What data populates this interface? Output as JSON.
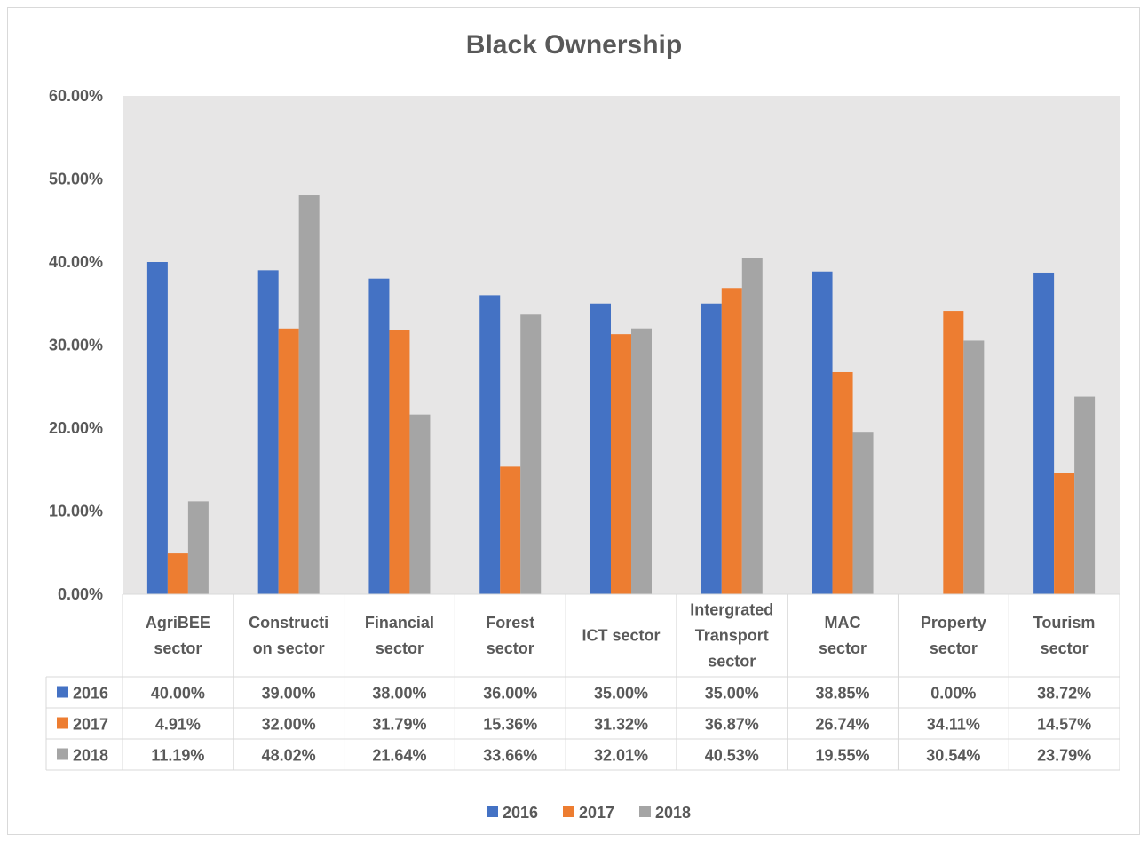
{
  "chart_data": {
    "type": "bar",
    "title": "Black Ownership",
    "categories": [
      [
        "AgriBEE",
        "sector"
      ],
      [
        "Constructi",
        "on sector"
      ],
      [
        "Financial",
        "sector"
      ],
      [
        "Forest",
        "sector"
      ],
      [
        "ICT sector"
      ],
      [
        "Intergrated",
        "Transport",
        "sector"
      ],
      [
        "MAC",
        "sector"
      ],
      [
        "Property",
        "sector"
      ],
      [
        "Tourism",
        "sector"
      ]
    ],
    "series": [
      {
        "name": "2016",
        "color": "#4472c4",
        "values": [
          40.0,
          39.0,
          38.0,
          36.0,
          35.0,
          35.0,
          38.85,
          0.0,
          38.72
        ],
        "labels": [
          "40.00%",
          "39.00%",
          "38.00%",
          "36.00%",
          "35.00%",
          "35.00%",
          "38.85%",
          "0.00%",
          "38.72%"
        ]
      },
      {
        "name": "2017",
        "color": "#ed7d31",
        "values": [
          4.91,
          32.0,
          31.79,
          15.36,
          31.32,
          36.87,
          26.74,
          34.11,
          14.57
        ],
        "labels": [
          "4.91%",
          "32.00%",
          "31.79%",
          "15.36%",
          "31.32%",
          "36.87%",
          "26.74%",
          "34.11%",
          "14.57%"
        ]
      },
      {
        "name": "2018",
        "color": "#a5a5a5",
        "values": [
          11.19,
          48.02,
          21.64,
          33.66,
          32.01,
          40.53,
          19.55,
          30.54,
          23.79
        ],
        "labels": [
          "11.19%",
          "48.02%",
          "21.64%",
          "33.66%",
          "32.01%",
          "40.53%",
          "19.55%",
          "30.54%",
          "23.79%"
        ]
      }
    ],
    "yticks": [
      "0.00%",
      "10.00%",
      "20.00%",
      "30.00%",
      "40.00%",
      "50.00%",
      "60.00%"
    ],
    "ylim": [
      0,
      60
    ],
    "grid": false,
    "plot_background": "#e7e6e6",
    "data_table": true,
    "legend_position": "bottom"
  }
}
